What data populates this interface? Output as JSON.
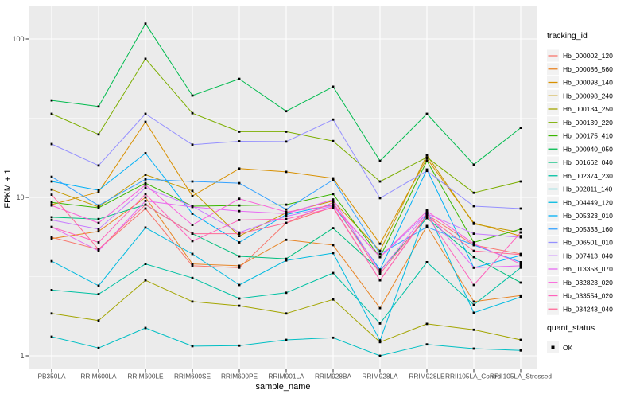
{
  "chart_data": {
    "type": "line",
    "title": "",
    "xlabel": "sample_name",
    "ylabel": "FPKM + 1",
    "y_scale": "log10",
    "y_ticks": [
      "1",
      "10",
      "100"
    ],
    "y_tick_values": [
      1,
      10,
      100
    ],
    "y_minor_values": [
      3.162,
      31.62
    ],
    "ylim": [
      0.82,
      160
    ],
    "grid": true,
    "legend_position": "right",
    "legend_series_title": "tracking_id",
    "legend_points_title": "quant_status",
    "point_legend_label": "OK",
    "point_color": "#000000",
    "panel_bg": "#EBEBEB",
    "grid_color": "#FFFFFF",
    "axis_text_color": "#4D4D4D",
    "legend_key_bg": "#F2F2F2",
    "categories": [
      "PB350LA",
      "RRIM600LA",
      "RRIM600LE",
      "RRIM600SE",
      "RRIM600PE",
      "RRIM901LA",
      "RRIM928BA",
      "RRIM928LA",
      "RRIM928LE",
      "RRII105LA_Control",
      "RRII105LA_Stressed"
    ],
    "series": [
      {
        "name": "Hb_000002_120",
        "color": "#F8766D",
        "values": [
          5.6,
          4.7,
          8.5,
          3.7,
          3.6,
          6.9,
          8.7,
          3.0,
          7.8,
          5.0,
          4.4
        ]
      },
      {
        "name": "Hb_000086_560",
        "color": "#E88526",
        "values": [
          5.5,
          6.1,
          10.0,
          3.8,
          3.7,
          5.4,
          5.0,
          2.0,
          6.6,
          2.2,
          2.4
        ]
      },
      {
        "name": "Hb_000098_140",
        "color": "#D89000",
        "values": [
          9.0,
          10.8,
          30.0,
          10.2,
          15.2,
          14.5,
          13.2,
          5.1,
          17.6,
          6.9,
          5.7
        ]
      },
      {
        "name": "Hb_000098_240",
        "color": "#C49A00",
        "values": [
          11.2,
          8.7,
          13.9,
          11.0,
          5.7,
          8.0,
          9.5,
          4.6,
          18.5,
          6.8,
          6.0
        ]
      },
      {
        "name": "Hb_000134_250",
        "color": "#A3A500",
        "values": [
          1.85,
          1.67,
          3.0,
          2.2,
          2.07,
          1.85,
          2.27,
          1.22,
          1.59,
          1.46,
          1.26
        ]
      },
      {
        "name": "Hb_000139_220",
        "color": "#7CAE00",
        "values": [
          33.7,
          25.0,
          75.0,
          34.0,
          26.0,
          26.0,
          22.7,
          12.6,
          17.9,
          10.7,
          12.6
        ]
      },
      {
        "name": "Hb_000175_410",
        "color": "#39B600",
        "values": [
          9.3,
          8.6,
          12.3,
          8.8,
          8.9,
          9.0,
          10.5,
          4.2,
          17.0,
          5.2,
          6.3
        ]
      },
      {
        "name": "Hb_000940_050",
        "color": "#00BB4E",
        "values": [
          41.0,
          37.5,
          125.0,
          44.0,
          56.0,
          35.0,
          50.0,
          17.0,
          33.7,
          16.1,
          27.5
        ]
      },
      {
        "name": "Hb_001662_040",
        "color": "#00BF7D",
        "values": [
          7.5,
          7.3,
          9.0,
          5.9,
          4.25,
          4.1,
          6.4,
          3.45,
          7.4,
          4.2,
          2.9
        ]
      },
      {
        "name": "Hb_002374_230",
        "color": "#00C1A3",
        "values": [
          2.6,
          2.45,
          3.8,
          3.1,
          2.3,
          2.5,
          3.33,
          1.6,
          3.9,
          2.1,
          3.6
        ]
      },
      {
        "name": "Hb_002811_140",
        "color": "#00BFC4",
        "values": [
          1.32,
          1.12,
          1.5,
          1.15,
          1.16,
          1.26,
          1.3,
          1.0,
          1.18,
          1.11,
          1.08
        ]
      },
      {
        "name": "Hb_004449_120",
        "color": "#00BAE0",
        "values": [
          3.96,
          2.77,
          6.45,
          4.4,
          2.8,
          4.0,
          4.45,
          1.25,
          8.3,
          1.87,
          2.35
        ]
      },
      {
        "name": "Hb_005323_010",
        "color": "#00B0F6",
        "values": [
          12.6,
          11.1,
          19.0,
          7.9,
          5.2,
          7.8,
          9.0,
          3.5,
          15.0,
          3.6,
          4.3
        ]
      },
      {
        "name": "Hb_005333_160",
        "color": "#35A2FF",
        "values": [
          13.5,
          8.9,
          13.0,
          12.6,
          12.3,
          8.4,
          12.9,
          4.4,
          6.5,
          5.0,
          3.9
        ]
      },
      {
        "name": "Hb_006501_010",
        "color": "#9590FF",
        "values": [
          21.7,
          15.9,
          33.7,
          21.5,
          22.6,
          22.5,
          31.0,
          9.9,
          14.7,
          8.8,
          8.5
        ]
      },
      {
        "name": "Hb_007413_040",
        "color": "#C77CFF",
        "values": [
          7.2,
          6.3,
          11.5,
          8.8,
          6.0,
          7.6,
          8.8,
          4.2,
          7.9,
          5.9,
          5.6
        ]
      },
      {
        "name": "Hb_013358_070",
        "color": "#E76BF3",
        "values": [
          6.5,
          4.6,
          9.5,
          8.7,
          8.2,
          7.9,
          9.7,
          3.4,
          8.0,
          3.6,
          3.7
        ]
      },
      {
        "name": "Hb_032823_020",
        "color": "#FA62DB",
        "values": [
          8.9,
          6.9,
          12.0,
          6.7,
          9.8,
          8.1,
          8.9,
          4.2,
          8.2,
          5.1,
          3.8
        ]
      },
      {
        "name": "Hb_033554_020",
        "color": "#FF62BC",
        "values": [
          6.5,
          5.2,
          10.5,
          5.3,
          7.2,
          7.3,
          8.6,
          3.0,
          7.7,
          2.8,
          6.0
        ]
      },
      {
        "name": "Hb_034243_040",
        "color": "#FF6A98",
        "values": [
          10.4,
          4.7,
          9.0,
          5.9,
          5.9,
          6.9,
          9.3,
          3.3,
          7.6,
          4.6,
          4.35
        ]
      }
    ]
  }
}
